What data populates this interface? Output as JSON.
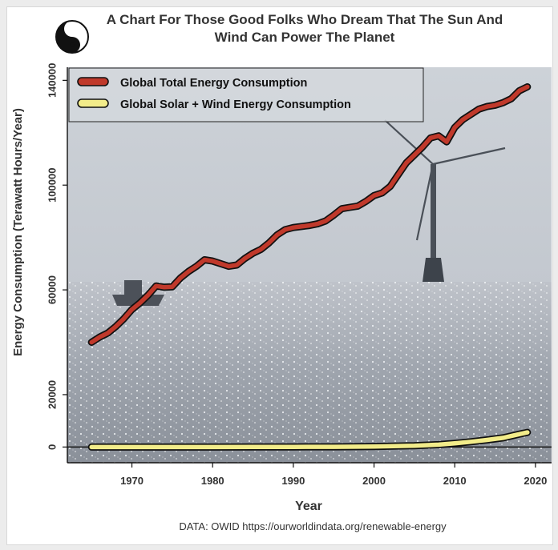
{
  "chart_data": {
    "type": "line",
    "title": "A Chart For Those Good Folks Who Dream That The Sun And Wind Can Power The Planet",
    "xlabel": "Year",
    "ylabel": "Energy Consumption (Terawatt Hours/Year)",
    "source": "DATA: OWID https://ourworldindata.org/renewable-energy",
    "xlim": [
      1962,
      2022
    ],
    "ylim": [
      -6000,
      145000
    ],
    "x_ticks": [
      1970,
      1980,
      1990,
      2000,
      2010,
      2020
    ],
    "y_ticks": [
      0,
      20000,
      60000,
      100000,
      140000
    ],
    "grid": false,
    "legend_position": "top-left",
    "series": [
      {
        "name": "Global Total Energy Consumption",
        "color": "#c0392b",
        "x": [
          1965,
          1966,
          1967,
          1968,
          1969,
          1970,
          1971,
          1972,
          1973,
          1974,
          1975,
          1976,
          1977,
          1978,
          1979,
          1980,
          1981,
          1982,
          1983,
          1984,
          1985,
          1986,
          1987,
          1988,
          1989,
          1990,
          1991,
          1992,
          1993,
          1994,
          1995,
          1996,
          1997,
          1998,
          1999,
          2000,
          2001,
          2002,
          2003,
          2004,
          2005,
          2006,
          2007,
          2008,
          2009,
          2010,
          2011,
          2012,
          2013,
          2014,
          2015,
          2016,
          2017,
          2018,
          2019
        ],
        "y": [
          40000,
          42000,
          43500,
          46000,
          49000,
          52500,
          55000,
          58000,
          61500,
          61000,
          61200,
          64500,
          67000,
          69000,
          71500,
          71000,
          70000,
          69000,
          69500,
          72000,
          74000,
          75500,
          78000,
          81000,
          83000,
          83800,
          84200,
          84600,
          85200,
          86300,
          88500,
          91000,
          91500,
          92000,
          93800,
          96000,
          97000,
          99500,
          104000,
          108500,
          111500,
          114500,
          118000,
          118800,
          116500,
          122000,
          125000,
          127000,
          129000,
          130000,
          130500,
          131500,
          133000,
          136000,
          137500
        ]
      },
      {
        "name": "Global Solar + Wind Energy Consumption",
        "color": "#f2ec8a",
        "x": [
          1965,
          1970,
          1975,
          1980,
          1985,
          1990,
          1995,
          2000,
          2005,
          2008,
          2010,
          2012,
          2014,
          2016,
          2017,
          2018,
          2019
        ],
        "y": [
          0,
          0,
          0,
          5,
          20,
          40,
          80,
          200,
          500,
          900,
          1400,
          2000,
          2700,
          3500,
          4200,
          4900,
          5600
        ]
      }
    ]
  }
}
